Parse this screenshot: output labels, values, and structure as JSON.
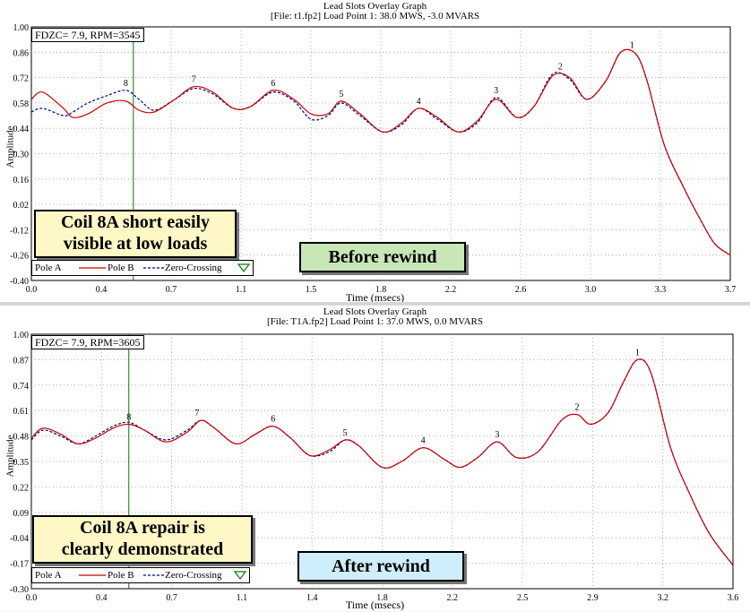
{
  "charts": [
    {
      "id": "top",
      "title": "Lead Slots Overlay Graph",
      "subtitle": "[File: t1.fp2]  Load Point 1:  38.0 MWS,  -3.0 MVARS",
      "info_box": "FDZC= 7.9, RPM=3545",
      "annotation_lines": [
        "Coil 8A short easily",
        "visible at low loads"
      ],
      "stage_label": "Before rewind",
      "stage_color": "#c9e7b6",
      "legend": [
        "Pole A",
        "Pole B",
        "Zero-Crossing"
      ],
      "xlabel": "Time (msecs)",
      "ylabel": "Amplitude"
    },
    {
      "id": "bottom",
      "title": "Lead Slots Overlay Graph",
      "subtitle": "[File: T1A.fp2]  Load Point 1:  37.0 MWS,   0.0 MVARS",
      "info_box": "FDZC= 7.9, RPM=3605",
      "annotation_lines": [
        "Coil 8A repair is",
        "clearly demonstrated"
      ],
      "stage_label": "After rewind",
      "stage_color": "#cdeefa",
      "legend": [
        "Pole A",
        "Pole B",
        "Zero-Crossing"
      ],
      "xlabel": "Time (msecs)",
      "ylabel": "Amplitude"
    }
  ],
  "chart_data": [
    {
      "type": "line",
      "title": "Lead Slots Overlay Graph",
      "xlabel": "Time (msecs)",
      "ylabel": "Amplitude",
      "xlim": [
        0.0,
        3.7
      ],
      "ylim": [
        -0.4,
        1.0
      ],
      "xticks": [
        "0.0",
        "0.4",
        "0.7",
        "1.1",
        "1.5",
        "1.8",
        "2.2",
        "2.6",
        "3.0",
        "3.3",
        "3.7"
      ],
      "yticks": [
        "1.00",
        "0.86",
        "0.72",
        "0.58",
        "0.44",
        "0.30",
        "0.16",
        "0.02",
        "-0.12",
        "-0.26",
        "-0.40"
      ],
      "zero_crossing_x": 0.54,
      "series": [
        {
          "name": "Pole B",
          "color": "#cc0000",
          "x": [
            0,
            0.06,
            0.17,
            0.22,
            0.3,
            0.4,
            0.5,
            0.57,
            0.65,
            0.76,
            0.86,
            0.96,
            1.07,
            1.16,
            1.28,
            1.39,
            1.48,
            1.57,
            1.64,
            1.74,
            1.86,
            1.96,
            2.05,
            2.15,
            2.26,
            2.36,
            2.46,
            2.57,
            2.66,
            2.76,
            2.85,
            2.94,
            3.04,
            3.12,
            3.2,
            3.26,
            3.35,
            3.45,
            3.55,
            3.62,
            3.7
          ],
          "y": [
            0.6,
            0.64,
            0.55,
            0.5,
            0.52,
            0.58,
            0.59,
            0.54,
            0.53,
            0.6,
            0.67,
            0.64,
            0.55,
            0.56,
            0.65,
            0.6,
            0.52,
            0.52,
            0.59,
            0.52,
            0.42,
            0.47,
            0.55,
            0.5,
            0.42,
            0.48,
            0.6,
            0.5,
            0.56,
            0.73,
            0.72,
            0.6,
            0.7,
            0.86,
            0.85,
            0.7,
            0.35,
            0.12,
            -0.08,
            -0.2,
            -0.26
          ]
        },
        {
          "name": "Zero-Crossing",
          "color": "#000099",
          "x": [
            0,
            0.06,
            0.17,
            0.22,
            0.3,
            0.4,
            0.5,
            0.57,
            0.65,
            0.76,
            0.86,
            0.96,
            1.07,
            1.16,
            1.28,
            1.39,
            1.48,
            1.57,
            1.64,
            1.74,
            1.86,
            1.96,
            2.05,
            2.15,
            2.26,
            2.36,
            2.46,
            2.57,
            2.66,
            2.76,
            2.85,
            2.94,
            3.04,
            3.12,
            3.2,
            3.26,
            3.35,
            3.45,
            3.55,
            3.62,
            3.7
          ],
          "y": [
            0.53,
            0.55,
            0.51,
            0.53,
            0.58,
            0.62,
            0.65,
            0.6,
            0.54,
            0.6,
            0.66,
            0.63,
            0.55,
            0.56,
            0.64,
            0.59,
            0.49,
            0.51,
            0.58,
            0.51,
            0.42,
            0.46,
            0.55,
            0.49,
            0.42,
            0.47,
            0.61,
            0.5,
            0.56,
            0.74,
            0.71,
            0.6,
            0.7,
            0.86,
            0.85,
            0.7,
            0.35,
            0.12,
            -0.08,
            -0.2,
            -0.26
          ]
        }
      ],
      "peak_labels": [
        {
          "label": "8",
          "x": 0.5,
          "y": 0.65
        },
        {
          "label": "7",
          "x": 0.86,
          "y": 0.67
        },
        {
          "label": "6",
          "x": 1.28,
          "y": 0.65
        },
        {
          "label": "5",
          "x": 1.64,
          "y": 0.59
        },
        {
          "label": "4",
          "x": 2.05,
          "y": 0.55
        },
        {
          "label": "3",
          "x": 2.46,
          "y": 0.61
        },
        {
          "label": "2",
          "x": 2.8,
          "y": 0.74
        },
        {
          "label": "1",
          "x": 3.18,
          "y": 0.86
        }
      ]
    },
    {
      "type": "line",
      "title": "Lead Slots Overlay Graph",
      "xlabel": "Time (msecs)",
      "ylabel": "Amplitude",
      "xlim": [
        0.0,
        3.6
      ],
      "ylim": [
        -0.3,
        1.0
      ],
      "xticks": [
        "0.0",
        "0.4",
        "0.7",
        "1.1",
        "1.4",
        "1.8",
        "2.2",
        "2.5",
        "2.9",
        "3.2",
        "3.6"
      ],
      "yticks": [
        "1.00",
        "0.87",
        "0.74",
        "0.61",
        "0.48",
        "0.35",
        "0.22",
        "0.09",
        "-0.04",
        "-0.17",
        "-0.30"
      ],
      "zero_crossing_x": 0.5,
      "series": [
        {
          "name": "Pole B",
          "color": "#cc0000",
          "x": [
            0,
            0.06,
            0.15,
            0.24,
            0.33,
            0.42,
            0.5,
            0.58,
            0.69,
            0.8,
            0.87,
            0.94,
            1.05,
            1.15,
            1.24,
            1.33,
            1.43,
            1.53,
            1.61,
            1.68,
            1.8,
            1.9,
            2.01,
            2.12,
            2.2,
            2.29,
            2.39,
            2.49,
            2.6,
            2.72,
            2.8,
            2.87,
            2.96,
            3.04,
            3.11,
            3.18,
            3.28,
            3.38,
            3.48,
            3.6
          ],
          "y": [
            0.47,
            0.52,
            0.49,
            0.44,
            0.47,
            0.52,
            0.54,
            0.51,
            0.45,
            0.5,
            0.56,
            0.52,
            0.44,
            0.49,
            0.53,
            0.47,
            0.38,
            0.41,
            0.46,
            0.43,
            0.32,
            0.35,
            0.42,
            0.36,
            0.32,
            0.37,
            0.45,
            0.37,
            0.4,
            0.56,
            0.59,
            0.54,
            0.6,
            0.76,
            0.87,
            0.8,
            0.42,
            0.18,
            -0.02,
            -0.18
          ]
        },
        {
          "name": "Zero-Crossing",
          "color": "#000099",
          "x": [
            0,
            0.06,
            0.15,
            0.24,
            0.33,
            0.42,
            0.5,
            0.58,
            0.69,
            0.8,
            0.87,
            0.94,
            1.05,
            1.15,
            1.24,
            1.33,
            1.43,
            1.53,
            1.61,
            1.68,
            1.8,
            1.9,
            2.01,
            2.12,
            2.2,
            2.29,
            2.39,
            2.49,
            2.6,
            2.72,
            2.8,
            2.87,
            2.96,
            3.04,
            3.11,
            3.18,
            3.28,
            3.38,
            3.48,
            3.6
          ],
          "y": [
            0.46,
            0.51,
            0.48,
            0.44,
            0.48,
            0.53,
            0.55,
            0.51,
            0.46,
            0.51,
            0.56,
            0.52,
            0.44,
            0.49,
            0.53,
            0.47,
            0.38,
            0.4,
            0.46,
            0.43,
            0.32,
            0.35,
            0.42,
            0.36,
            0.32,
            0.37,
            0.45,
            0.37,
            0.4,
            0.56,
            0.59,
            0.54,
            0.6,
            0.76,
            0.87,
            0.8,
            0.42,
            0.18,
            -0.02,
            -0.18
          ]
        }
      ],
      "peak_labels": [
        {
          "label": "8",
          "x": 0.5,
          "y": 0.54
        },
        {
          "label": "7",
          "x": 0.85,
          "y": 0.56
        },
        {
          "label": "6",
          "x": 1.24,
          "y": 0.53
        },
        {
          "label": "5",
          "x": 1.61,
          "y": 0.46
        },
        {
          "label": "4",
          "x": 2.01,
          "y": 0.42
        },
        {
          "label": "3",
          "x": 2.39,
          "y": 0.45
        },
        {
          "label": "2",
          "x": 2.8,
          "y": 0.59
        },
        {
          "label": "1",
          "x": 3.11,
          "y": 0.87
        }
      ]
    }
  ]
}
